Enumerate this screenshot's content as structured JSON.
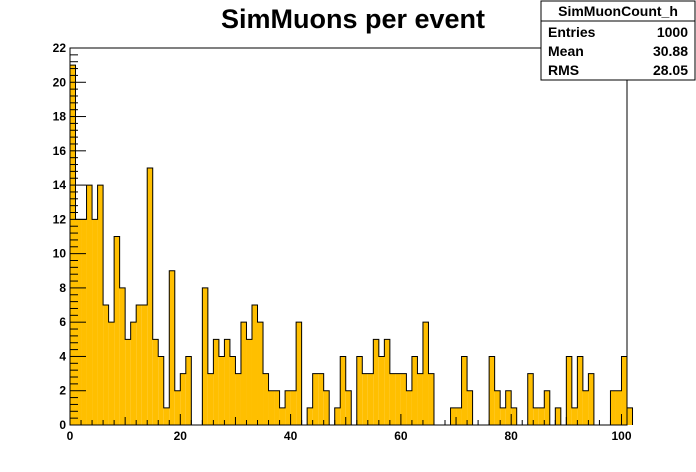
{
  "chart_data": {
    "type": "bar",
    "title": "SimMuons per event",
    "xlabel": "",
    "ylabel": "",
    "xlim": [
      0,
      101
    ],
    "ylim": [
      0,
      22
    ],
    "x_ticks": [
      0,
      20,
      40,
      60,
      80,
      100
    ],
    "y_ticks": [
      0,
      2,
      4,
      6,
      8,
      10,
      12,
      14,
      16,
      18,
      20,
      22
    ],
    "bin_width": 1,
    "bin_start": 0,
    "values": [
      21,
      12,
      12,
      14,
      12,
      14,
      7,
      6,
      11,
      8,
      5,
      6,
      7,
      7,
      15,
      5,
      4,
      1,
      9,
      2,
      3,
      4,
      0,
      0,
      8,
      3,
      5,
      4,
      5,
      4,
      3,
      6,
      5,
      7,
      6,
      3,
      2,
      2,
      1,
      2,
      2,
      6,
      0,
      1,
      3,
      3,
      2,
      0,
      1,
      4,
      2,
      0,
      4,
      3,
      3,
      5,
      4,
      5,
      3,
      3,
      3,
      2,
      4,
      3,
      6,
      3,
      0,
      0,
      0,
      1,
      1,
      4,
      2,
      0,
      0,
      0,
      4,
      2,
      1,
      2,
      1,
      0,
      0,
      3,
      1,
      1,
      2,
      0,
      1,
      0,
      4,
      1,
      4,
      2,
      3,
      0,
      0,
      0,
      2,
      2,
      4,
      1
    ],
    "fill_color": "#ffbf00",
    "line_color": "#000000",
    "grid": false,
    "legend": "none"
  },
  "stats": {
    "name": "SimMuonCount_h",
    "rows": [
      {
        "label": "Entries",
        "value": "1000"
      },
      {
        "label": "Mean",
        "value": "30.88"
      },
      {
        "label": "RMS",
        "value": "28.05"
      }
    ]
  }
}
